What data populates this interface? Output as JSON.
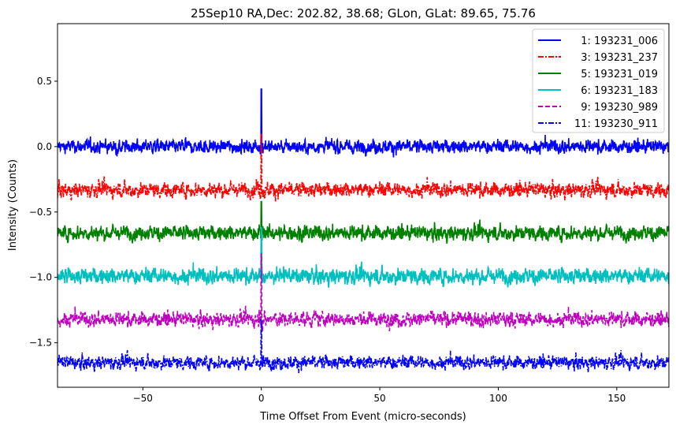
{
  "chart_data": {
    "type": "line",
    "title": "25Sep10 RA,Dec:  202.82,  38.68; GLon, GLat:   89.65,  75.76",
    "xlabel": "Time Offset From Event (micro-seconds)",
    "ylabel": "Intensity (Counts)",
    "xlim": [
      -86,
      172
    ],
    "ylim": [
      -1.84,
      0.94
    ],
    "xticks": [
      -50,
      0,
      50,
      100,
      150
    ],
    "xtick_labels": [
      "−50",
      "0",
      "50",
      "100",
      "150"
    ],
    "yticks": [
      0.5,
      0.0,
      -0.5,
      -1.0,
      -1.5
    ],
    "ytick_labels": [
      "0.5",
      "0.0",
      "−0.5",
      "−1.0",
      "−1.5"
    ],
    "grid": false,
    "legend_position": "top-right",
    "event_time": 0,
    "sample_step": 0.1,
    "series": [
      {
        "name": "1: 193231_006",
        "color": "#0000ff",
        "dash": "solid",
        "offset": 0.0,
        "noise": 0.022,
        "spike_peak": 0.44
      },
      {
        "name": "3: 193231_237",
        "color": "#ff0000",
        "dash": "dashdot",
        "offset": -0.33,
        "noise": 0.024,
        "spike_peak": 0.1
      },
      {
        "name": "5: 193231_019",
        "color": "#008000",
        "dash": "solid",
        "offset": -0.66,
        "noise": 0.024,
        "spike_peak": -0.42
      },
      {
        "name": "6: 193231_183",
        "color": "#00bfbf",
        "dash": "solid",
        "offset": -0.99,
        "noise": 0.026,
        "spike_peak": -0.62
      },
      {
        "name": "9: 193230_989",
        "color": "#bf00bf",
        "dash": "dashed",
        "offset": -1.32,
        "noise": 0.024,
        "spike_peak": -0.82
      },
      {
        "name": "11: 193230_911",
        "color": "#0000ff",
        "dash": "dashdot",
        "offset": -1.65,
        "noise": 0.022,
        "spike_peak": -1.32
      }
    ]
  }
}
